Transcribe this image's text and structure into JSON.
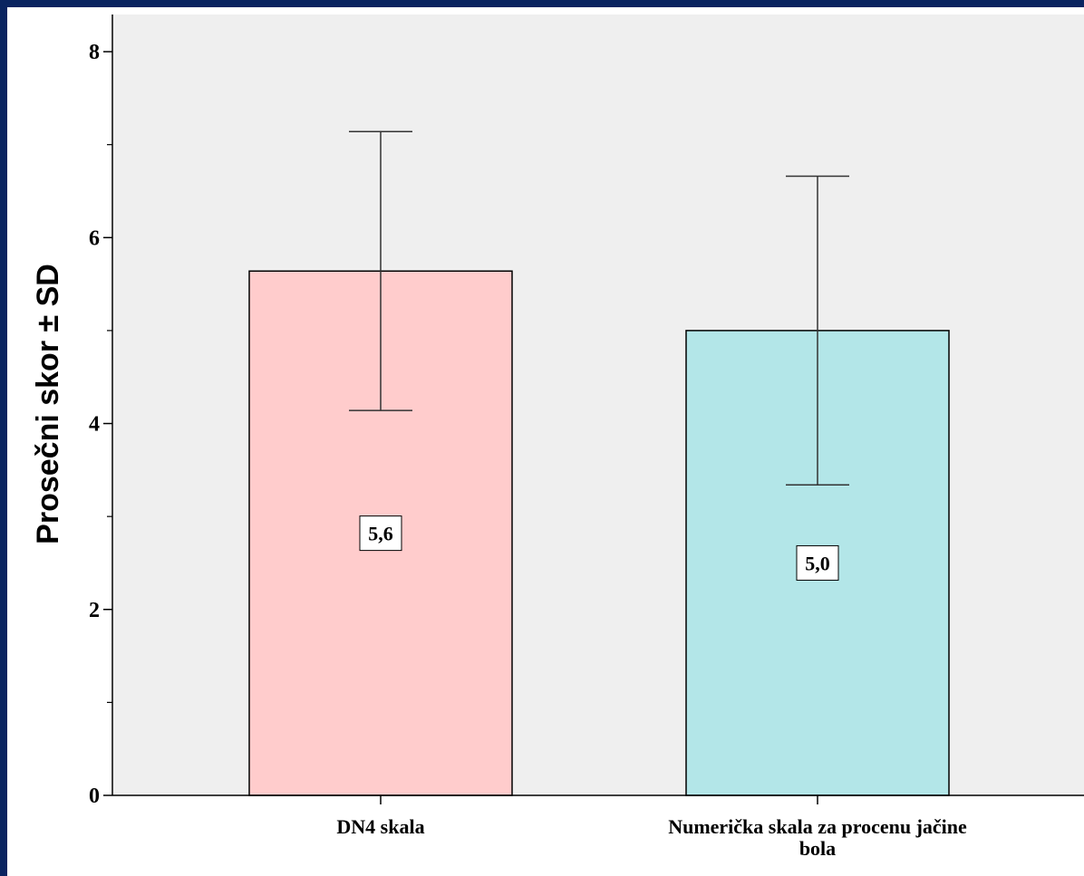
{
  "chart_data": {
    "type": "bar",
    "title": "",
    "xlabel": "",
    "ylabel": "Prosečni skor ± SD",
    "ylim": [
      0,
      8.4
    ],
    "y_major_ticks": [
      0,
      2,
      4,
      6,
      8
    ],
    "y_minor_ticks": [
      1,
      3,
      5,
      7
    ],
    "grid": false,
    "categories": [
      [
        "DN4 skala"
      ],
      [
        "Numerička skala za procenu jačine",
        "bola"
      ]
    ],
    "values": [
      5.64,
      5.0
    ],
    "error_bars": [
      {
        "low": 4.14,
        "high": 7.14
      },
      {
        "low": 3.34,
        "high": 6.66
      }
    ],
    "data_labels": [
      "5,6",
      "5,0"
    ],
    "bar_colors": [
      "#ffcccc",
      "#b3e6e8"
    ]
  },
  "colors": {
    "frame": "#0a2460",
    "plot_background": "#efefef",
    "axis": "#000000"
  }
}
